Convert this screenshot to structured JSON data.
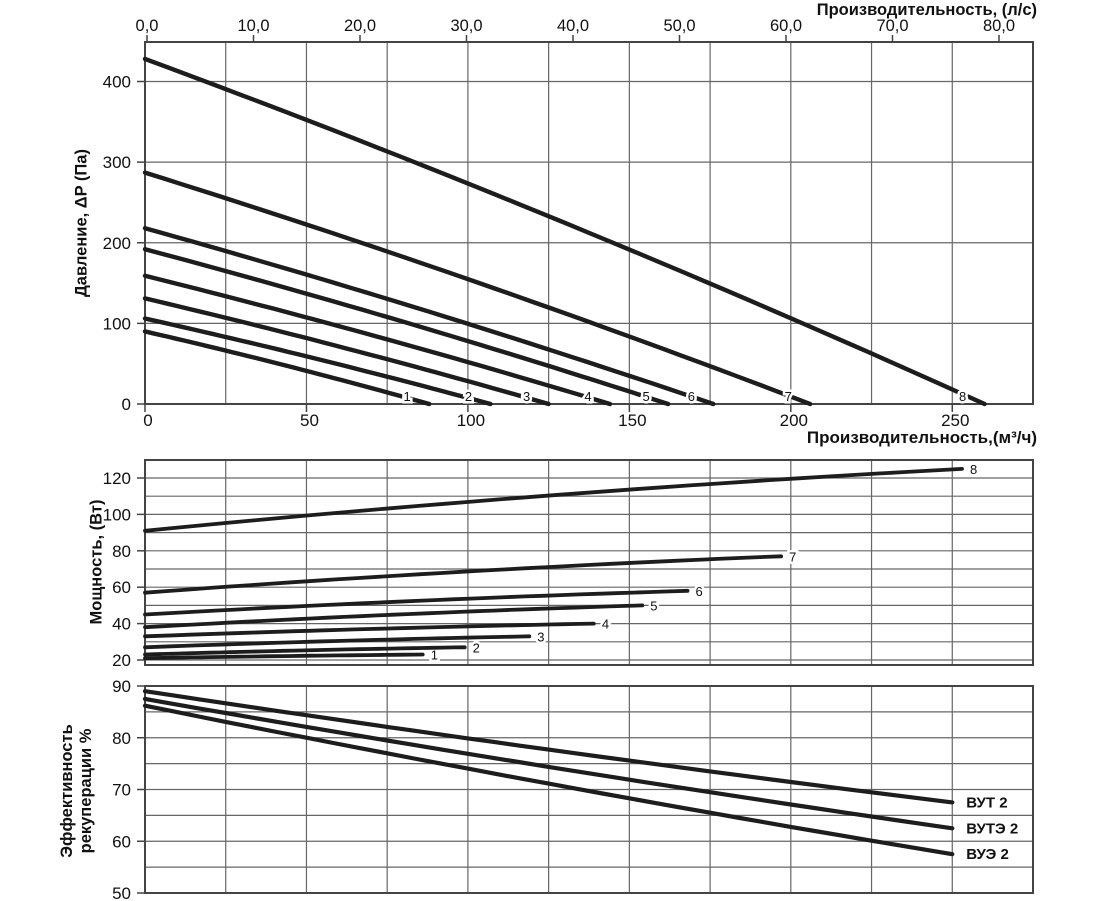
{
  "colors": {
    "background": "#ffffff",
    "curve": "#1d1d1d",
    "grid": "#666666",
    "border": "#444444",
    "text": "#111111"
  },
  "chart_data": [
    {
      "id": "pressure",
      "type": "line",
      "y_axis": {
        "label": "Давление, ΔP (Па)",
        "ticks": [
          0,
          100,
          200,
          300,
          400
        ],
        "range": [
          0,
          449
        ],
        "grid_step": 100
      },
      "x_top_axis": {
        "title": "Производительность, (л/с)",
        "unit": "л/с",
        "tick_labels": [
          "0,0",
          "10,0",
          "20,0",
          "30,0",
          "40,0",
          "50,0",
          "60,0",
          "70,0",
          "80,0"
        ],
        "tick_values": [
          0,
          10,
          20,
          30,
          40,
          50,
          60,
          70,
          80
        ]
      },
      "x_bottom_axis": {
        "title": "Производительность,(м³/ч)",
        "unit": "м³/ч",
        "ticks": [
          0,
          50,
          100,
          150,
          200,
          250
        ],
        "range": [
          0,
          275
        ],
        "grid_step": 25
      },
      "grid": true,
      "curve_model": "P(q) ≈ p0·(1 − 0.9t − 0.1t²), t = q/qmax",
      "curves": [
        {
          "label": "1",
          "p0_pa": 90,
          "qmax_m3h": 88
        },
        {
          "label": "2",
          "p0_pa": 106,
          "qmax_m3h": 107
        },
        {
          "label": "3",
          "p0_pa": 131,
          "qmax_m3h": 125
        },
        {
          "label": "4",
          "p0_pa": 159,
          "qmax_m3h": 144
        },
        {
          "label": "5",
          "p0_pa": 192,
          "qmax_m3h": 162
        },
        {
          "label": "6",
          "p0_pa": 218,
          "qmax_m3h": 176
        },
        {
          "label": "7",
          "p0_pa": 287,
          "qmax_m3h": 206
        },
        {
          "label": "8",
          "p0_pa": 428,
          "qmax_m3h": 260
        }
      ]
    },
    {
      "id": "power",
      "type": "line",
      "y_axis": {
        "label": "Мощность, (Вт)",
        "ticks": [
          20,
          40,
          60,
          80,
          100,
          120
        ],
        "range": [
          17,
          130
        ],
        "grid_step": 10
      },
      "x_axis": {
        "range": [
          0,
          275
        ],
        "grid_step": 25,
        "tick_labels_visible": false
      },
      "grid": true,
      "curve_model": "W(q) ≈ w0 + (w1 − w0)·(1.3t − 0.3t²), t = q/qend",
      "curves": [
        {
          "label": "1",
          "w_start_w": 21,
          "w_end_w": 23,
          "qend_m3h": 86
        },
        {
          "label": "2",
          "w_start_w": 23,
          "w_end_w": 27,
          "qend_m3h": 99
        },
        {
          "label": "3",
          "w_start_w": 27,
          "w_end_w": 33,
          "qend_m3h": 119
        },
        {
          "label": "4",
          "w_start_w": 33,
          "w_end_w": 40,
          "qend_m3h": 139
        },
        {
          "label": "5",
          "w_start_w": 38,
          "w_end_w": 50,
          "qend_m3h": 154
        },
        {
          "label": "6",
          "w_start_w": 45,
          "w_end_w": 58,
          "qend_m3h": 168
        },
        {
          "label": "7",
          "w_start_w": 57,
          "w_end_w": 77,
          "qend_m3h": 197
        },
        {
          "label": "8",
          "w_start_w": 91,
          "w_end_w": 125,
          "qend_m3h": 253
        }
      ]
    },
    {
      "id": "efficiency",
      "type": "line",
      "y_axis": {
        "label": "Эффективность рекуперации %",
        "label_lines": [
          "Эффективность",
          "рекуперации %"
        ],
        "ticks": [
          50,
          60,
          70,
          80,
          90
        ],
        "range": [
          50,
          90
        ],
        "grid_step": 5
      },
      "x_axis": {
        "range": [
          0,
          275
        ],
        "grid_step": 25,
        "tick_labels_visible": false
      },
      "grid": true,
      "curve_model": "E(q) ≈ e0 − (e0 − e1)·(1.1t − 0.1t²), t = q/qend",
      "curves": [
        {
          "label": "ВУТ 2",
          "eff_start_pct": 89,
          "eff_end_pct": 67.5,
          "qend_m3h": 250
        },
        {
          "label": "ВУТЭ 2",
          "eff_start_pct": 87.5,
          "eff_end_pct": 62.5,
          "qend_m3h": 250
        },
        {
          "label": "ВУЭ 2",
          "eff_start_pct": 86.2,
          "eff_end_pct": 57.5,
          "qend_m3h": 250
        }
      ]
    }
  ]
}
